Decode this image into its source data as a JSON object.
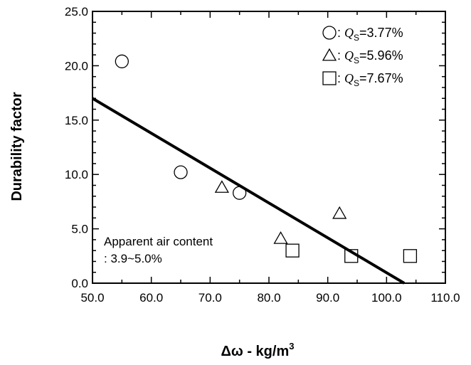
{
  "chart_data": {
    "type": "scatter",
    "xlabel": "Δω - kg/m",
    "xlabel_sup": "3",
    "ylabel": "Durability factor",
    "xlim": [
      50,
      110
    ],
    "ylim": [
      0,
      25
    ],
    "x_ticks": [
      "50.0",
      "60.0",
      "70.0",
      "80.0",
      "90.0",
      "100.0",
      "110.0"
    ],
    "y_ticks": [
      "0.0",
      "5.0",
      "10.0",
      "15.0",
      "20.0",
      "25.0"
    ],
    "series": [
      {
        "name": "3.77%",
        "marker": "circle",
        "points": [
          [
            55,
            20.4
          ],
          [
            65,
            10.2
          ],
          [
            75,
            8.3
          ]
        ]
      },
      {
        "name": "5.96%",
        "marker": "triangle",
        "points": [
          [
            72,
            8.8
          ],
          [
            82,
            4.1
          ],
          [
            92,
            6.4
          ]
        ]
      },
      {
        "name": "7.67%",
        "marker": "square",
        "points": [
          [
            84,
            3.0
          ],
          [
            94,
            2.5
          ],
          [
            104,
            2.5
          ]
        ]
      }
    ],
    "legend": {
      "position": "top-right",
      "items": [
        {
          "marker": "circle",
          "sep": " : ",
          "var": "Q",
          "sub": "S",
          "text": "=3.77%"
        },
        {
          "marker": "triangle",
          "sep": " : ",
          "var": "Q",
          "sub": "S",
          "text": "=5.96%"
        },
        {
          "marker": "square",
          "sep": " : ",
          "var": "Q",
          "sub": "S",
          "text": "=7.67%"
        }
      ]
    },
    "fit_line": {
      "x": [
        50,
        103
      ],
      "y": [
        17.0,
        0.0
      ]
    },
    "annotation": [
      "Apparent air content",
      ": 3.9~5.0%"
    ]
  }
}
